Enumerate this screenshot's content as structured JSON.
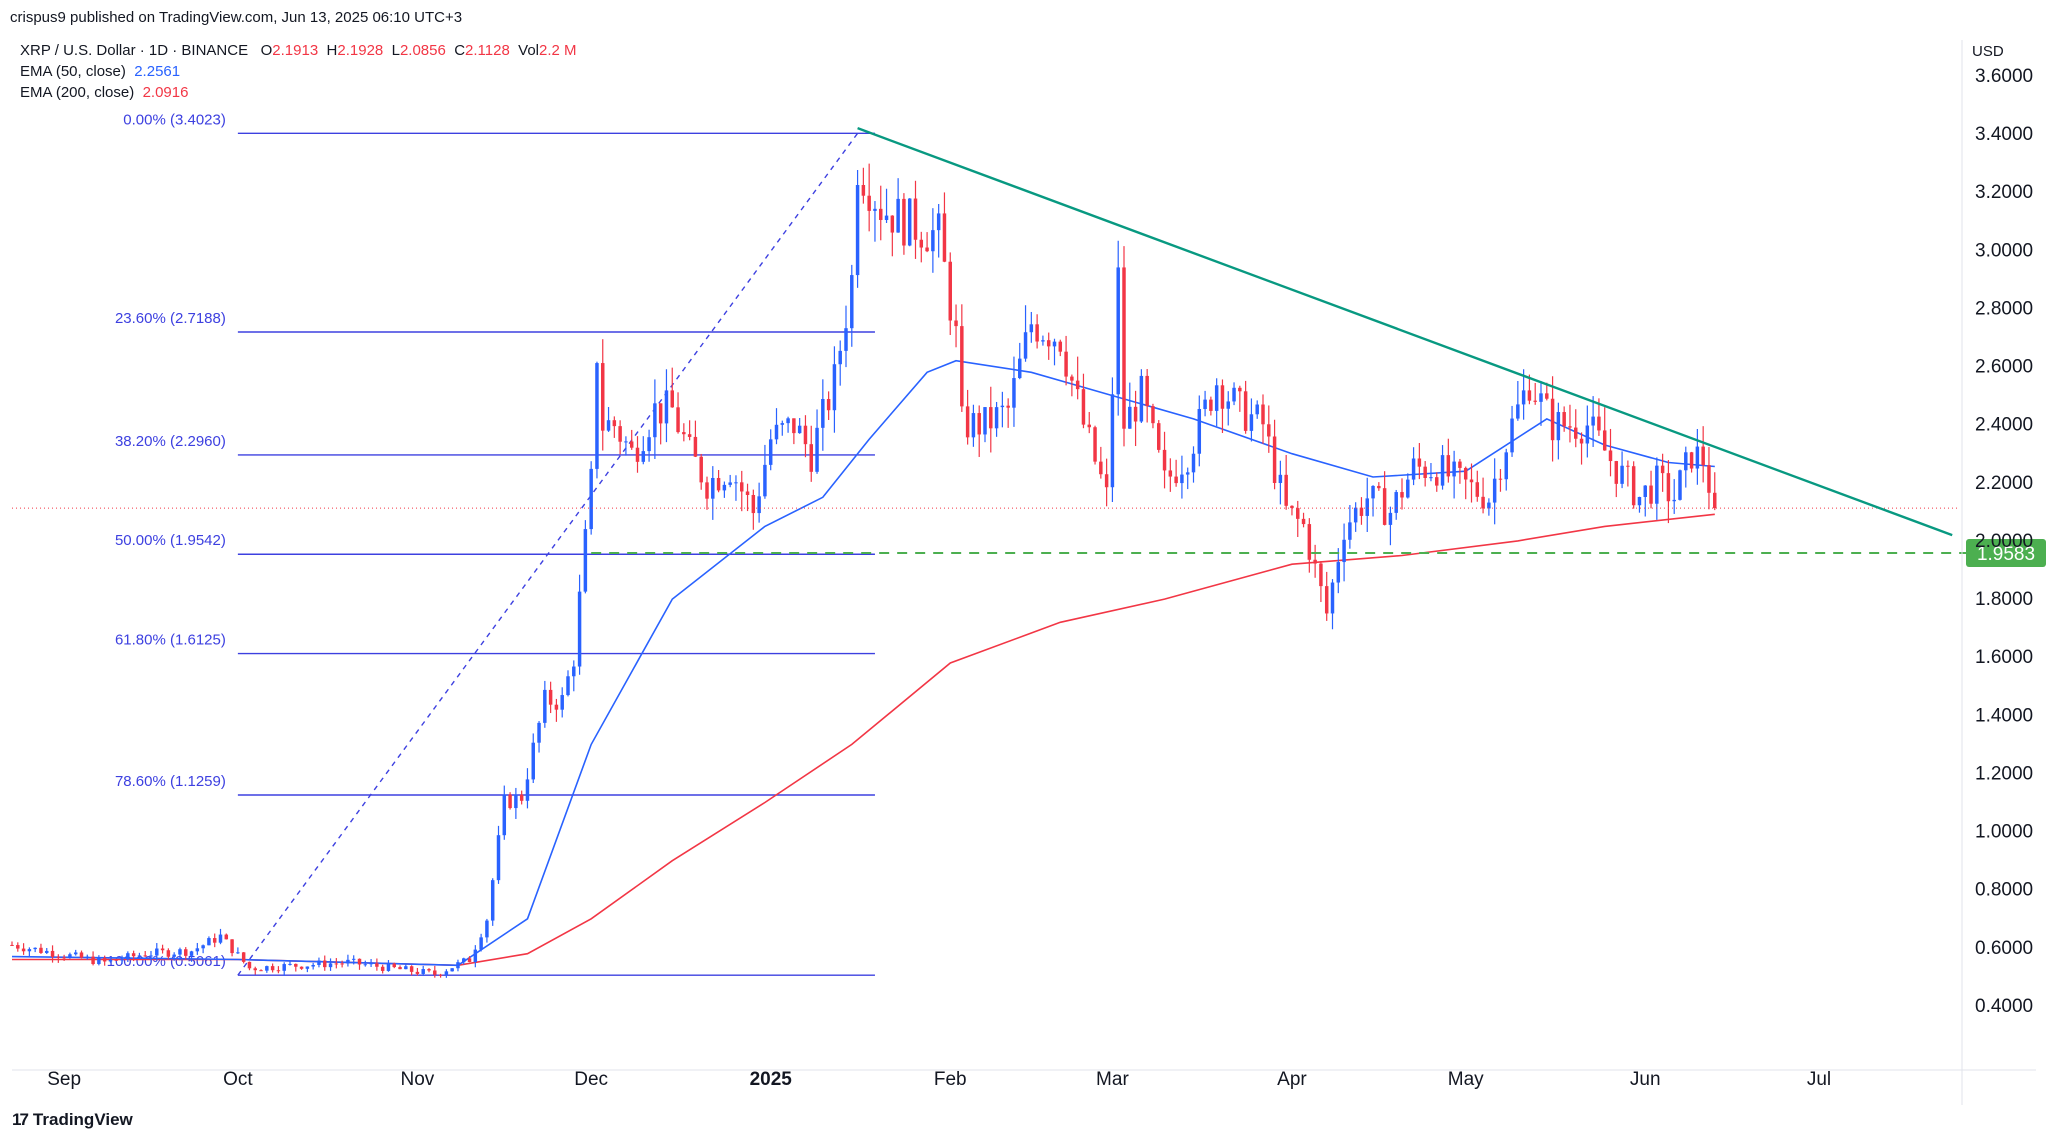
{
  "header": {
    "published": "crispus9 published on TradingView.com, Jun 13, 2025 06:10 UTC+3"
  },
  "legend": {
    "symbol": "XRP / U.S. Dollar · 1D · BINANCE",
    "o_label": "O",
    "o_value": "2.1913",
    "h_label": "H",
    "h_value": "2.1928",
    "l_label": "L",
    "l_value": "2.0856",
    "c_label": "C",
    "c_value": "2.1128",
    "vol_label": "Vol",
    "vol_value": "2.2 M",
    "ema50_label": "EMA (50, close)",
    "ema50_value": "2.2561",
    "ema200_label": "EMA (200, close)",
    "ema200_value": "2.0916"
  },
  "footer": {
    "brand": "TradingView",
    "icon": "tradingview-logo-icon"
  },
  "colors": {
    "up": "#2962ff",
    "down": "#f23645",
    "ema50": "#2962ff",
    "ema200": "#f23645",
    "fib": "#3d40e0",
    "trend": "#089981",
    "support": "#4caf50",
    "grid": "#f0f3fa"
  },
  "chart_data": {
    "type": "candlestick",
    "currency": "USD",
    "y_ticks": [
      "3.6000",
      "3.4000",
      "3.2000",
      "3.0000",
      "2.8000",
      "2.6000",
      "2.4000",
      "2.2000",
      "2.0000",
      "1.8000",
      "1.6000",
      "1.4000",
      "1.2000",
      "1.0000",
      "0.8000",
      "0.6000",
      "0.4000"
    ],
    "ylim": [
      0.3,
      3.75
    ],
    "x_ticks": [
      {
        "label": "Sep",
        "date": "2024-09-01"
      },
      {
        "label": "Oct",
        "date": "2024-10-01"
      },
      {
        "label": "Nov",
        "date": "2024-11-01"
      },
      {
        "label": "Dec",
        "date": "2024-12-01"
      },
      {
        "label": "2025",
        "date": "2025-01-01",
        "bold": true
      },
      {
        "label": "Feb",
        "date": "2025-02-01"
      },
      {
        "label": "Mar",
        "date": "2025-03-01"
      },
      {
        "label": "Apr",
        "date": "2025-04-01"
      },
      {
        "label": "May",
        "date": "2025-05-01"
      },
      {
        "label": "Jun",
        "date": "2025-06-01"
      },
      {
        "label": "Jul",
        "date": "2025-07-01"
      }
    ],
    "x_range": [
      "2024-08-23",
      "2025-07-25"
    ],
    "price_path": [
      [
        "2024-08-23",
        0.61
      ],
      [
        "2024-09-08",
        0.55
      ],
      [
        "2024-09-15",
        0.58
      ],
      [
        "2024-09-23",
        0.59
      ],
      [
        "2024-09-28",
        0.64
      ],
      [
        "2024-10-03",
        0.53
      ],
      [
        "2024-10-20",
        0.55
      ],
      [
        "2024-11-04",
        0.51
      ],
      [
        "2024-11-10",
        0.56
      ],
      [
        "2024-11-13",
        0.7
      ],
      [
        "2024-11-16",
        1.1
      ],
      [
        "2024-11-19",
        1.12
      ],
      [
        "2024-11-23",
        1.45
      ],
      [
        "2024-11-26",
        1.45
      ],
      [
        "2024-11-28",
        1.6
      ],
      [
        "2024-12-01",
        2.2
      ],
      [
        "2024-12-02",
        2.65
      ],
      [
        "2024-12-03",
        2.4
      ],
      [
        "2024-12-05",
        2.4
      ],
      [
        "2024-12-08",
        2.3
      ],
      [
        "2024-12-12",
        2.45
      ],
      [
        "2024-12-15",
        2.45
      ],
      [
        "2024-12-18",
        2.3
      ],
      [
        "2024-12-21",
        2.2
      ],
      [
        "2024-12-25",
        2.25
      ],
      [
        "2024-12-29",
        2.1
      ],
      [
        "2025-01-01",
        2.35
      ],
      [
        "2025-01-05",
        2.4
      ],
      [
        "2025-01-08",
        2.3
      ],
      [
        "2025-01-12",
        2.55
      ],
      [
        "2025-01-15",
        2.9
      ],
      [
        "2025-01-16",
        3.3
      ],
      [
        "2025-01-20",
        3.15
      ],
      [
        "2025-01-24",
        3.1
      ],
      [
        "2025-01-30",
        3.05
      ],
      [
        "2025-02-02",
        2.7
      ],
      [
        "2025-02-03",
        2.4
      ],
      [
        "2025-02-07",
        2.4
      ],
      [
        "2025-02-11",
        2.45
      ],
      [
        "2025-02-15",
        2.75
      ],
      [
        "2025-02-20",
        2.7
      ],
      [
        "2025-02-24",
        2.4
      ],
      [
        "2025-02-28",
        2.15
      ],
      [
        "2025-03-02",
        2.9
      ],
      [
        "2025-03-03",
        2.4
      ],
      [
        "2025-03-06",
        2.5
      ],
      [
        "2025-03-10",
        2.2
      ],
      [
        "2025-03-14",
        2.3
      ],
      [
        "2025-03-19",
        2.55
      ],
      [
        "2025-03-23",
        2.45
      ],
      [
        "2025-03-27",
        2.4
      ],
      [
        "2025-03-31",
        2.1
      ],
      [
        "2025-04-03",
        2.05
      ],
      [
        "2025-04-07",
        1.75
      ],
      [
        "2025-04-10",
        2.05
      ],
      [
        "2025-04-14",
        2.15
      ],
      [
        "2025-04-18",
        2.1
      ],
      [
        "2025-04-22",
        2.25
      ],
      [
        "2025-04-26",
        2.25
      ],
      [
        "2025-04-30",
        2.2
      ],
      [
        "2025-05-05",
        2.15
      ],
      [
        "2025-05-09",
        2.4
      ],
      [
        "2025-05-12",
        2.55
      ],
      [
        "2025-05-16",
        2.4
      ],
      [
        "2025-05-22",
        2.4
      ],
      [
        "2025-05-27",
        2.25
      ],
      [
        "2025-05-31",
        2.15
      ],
      [
        "2025-06-03",
        2.2
      ],
      [
        "2025-06-06",
        2.15
      ],
      [
        "2025-06-09",
        2.3
      ],
      [
        "2025-06-11",
        2.28
      ],
      [
        "2025-06-13",
        2.11
      ]
    ],
    "ema50": {
      "name": "EMA (50, close)",
      "points": [
        [
          "2024-08-23",
          0.57
        ],
        [
          "2024-10-01",
          0.56
        ],
        [
          "2024-11-08",
          0.54
        ],
        [
          "2024-11-20",
          0.7
        ],
        [
          "2024-12-01",
          1.3
        ],
        [
          "2024-12-15",
          1.8
        ],
        [
          "2024-12-31",
          2.05
        ],
        [
          "2025-01-10",
          2.15
        ],
        [
          "2025-01-18",
          2.35
        ],
        [
          "2025-01-28",
          2.58
        ],
        [
          "2025-02-02",
          2.62
        ],
        [
          "2025-02-15",
          2.58
        ],
        [
          "2025-03-01",
          2.5
        ],
        [
          "2025-03-15",
          2.42
        ],
        [
          "2025-04-01",
          2.3
        ],
        [
          "2025-04-15",
          2.22
        ],
        [
          "2025-05-01",
          2.24
        ],
        [
          "2025-05-15",
          2.42
        ],
        [
          "2025-05-25",
          2.33
        ],
        [
          "2025-06-05",
          2.27
        ],
        [
          "2025-06-13",
          2.2561
        ]
      ]
    },
    "ema200": {
      "name": "EMA (200, close)",
      "points": [
        [
          "2024-08-23",
          0.56
        ],
        [
          "2024-10-01",
          0.56
        ],
        [
          "2024-11-08",
          0.54
        ],
        [
          "2024-11-20",
          0.58
        ],
        [
          "2024-12-01",
          0.7
        ],
        [
          "2024-12-15",
          0.9
        ],
        [
          "2024-12-31",
          1.1
        ],
        [
          "2025-01-15",
          1.3
        ],
        [
          "2025-02-01",
          1.58
        ],
        [
          "2025-02-20",
          1.72
        ],
        [
          "2025-03-10",
          1.8
        ],
        [
          "2025-04-01",
          1.92
        ],
        [
          "2025-04-20",
          1.95
        ],
        [
          "2025-05-10",
          2.0
        ],
        [
          "2025-05-25",
          2.05
        ],
        [
          "2025-06-13",
          2.0916
        ]
      ]
    },
    "fibonacci": {
      "x_start": "2024-10-01",
      "x_end": "2025-01-19",
      "levels": [
        {
          "label": "0.00% (3.4023)",
          "value": 3.4023
        },
        {
          "label": "23.60% (2.7188)",
          "value": 2.7188
        },
        {
          "label": "38.20% (2.2960)",
          "value": 2.296
        },
        {
          "label": "50.00% (1.9542)",
          "value": 1.9542
        },
        {
          "label": "61.80% (1.6125)",
          "value": 1.6125
        },
        {
          "label": "78.60% (1.1259)",
          "value": 1.1259
        },
        {
          "label": "100.00% (0.5061)",
          "value": 0.5061
        }
      ],
      "diagonal": [
        [
          "2024-10-01",
          0.5061
        ],
        [
          "2025-01-16",
          3.4023
        ]
      ]
    },
    "trendline": [
      [
        "2025-01-16",
        3.42
      ],
      [
        "2025-07-24",
        2.02
      ]
    ],
    "support": {
      "value": 1.9583,
      "label": "1.9583",
      "from": "2024-12-01"
    },
    "current_price_line": {
      "value": 2.1128
    }
  }
}
